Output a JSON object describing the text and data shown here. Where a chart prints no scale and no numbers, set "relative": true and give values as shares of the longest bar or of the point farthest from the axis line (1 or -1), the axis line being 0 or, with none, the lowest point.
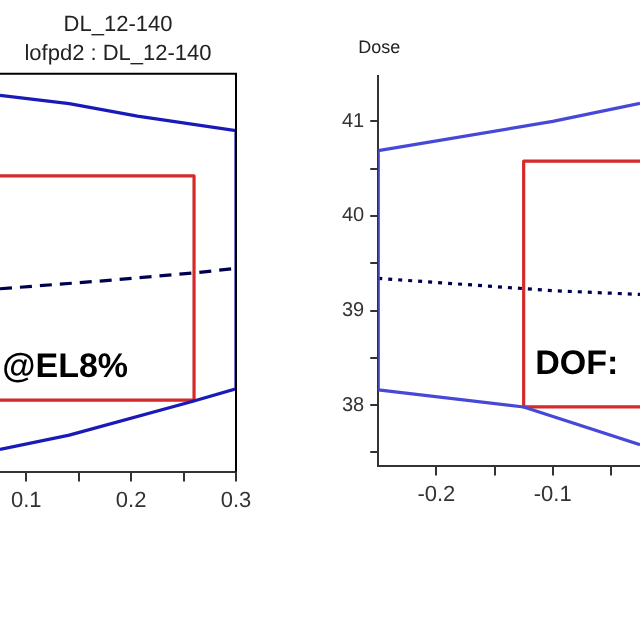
{
  "chart_data": [
    {
      "type": "line",
      "title": "DL_12-140",
      "subtitle": "lofpd2 : DL_12-140",
      "relative": true,
      "xlim": [
        0.075,
        0.3
      ],
      "xticks": [
        0.1,
        {
          "value": 0.15,
          "label": null
        },
        0.2,
        {
          "value": 0.25,
          "label": null
        },
        0.3
      ],
      "tick_labels": "x",
      "marker": "none",
      "grid": false,
      "annotations": [
        "@EL8%"
      ],
      "series": [
        {
          "color": "#1a1ab8",
          "x": [
            0.075,
            0.141,
            0.206,
            0.3,
            0.3,
            0.259,
            0.141,
            0.075
          ],
          "values": [
            1,
            0.978,
            0.945,
            0.906,
            0.22,
            0.187,
            0.097,
            0.059
          ]
        },
        {
          "color": "#000050",
          "line_style": "dashed",
          "x": [
            0.075,
            0.173,
            0.259,
            0.3
          ],
          "values": [
            0.486,
            0.507,
            0.528,
            0.54
          ]
        },
        {
          "color": "#d42a2a",
          "x": [
            0.075,
            0.26,
            0.26,
            0.075
          ],
          "values": [
            0.786,
            0.786,
            0.19,
            0.19
          ]
        }
      ]
    },
    {
      "type": "line",
      "ylabel": "Dose",
      "xlim": [
        -0.25,
        -0.025
      ],
      "ylim": [
        37.36,
        41.48
      ],
      "xticks": [
        -0.2,
        {
          "value": -0.15,
          "label": null
        },
        -0.1,
        {
          "value": -0.05,
          "label": null
        }
      ],
      "yticks": [
        {
          "value": 37.5,
          "label": null
        },
        38,
        {
          "value": 38.5,
          "label": null
        },
        39,
        {
          "value": 39.5,
          "label": null
        },
        40,
        {
          "value": 40.5,
          "label": null
        },
        41
      ],
      "marker": "none",
      "grid": false,
      "annotations": [
        "DOF:"
      ],
      "series": [
        {
          "color": "#4848d8",
          "x": [
            -0.025,
            -0.1,
            -0.25,
            -0.25,
            -0.125,
            -0.025
          ],
          "values": [
            41.19,
            41.0,
            40.69,
            38.16,
            37.98,
            37.58
          ]
        },
        {
          "color": "#000050",
          "line_style": "dotted",
          "x": [
            -0.25,
            -0.1,
            -0.025
          ],
          "values": [
            39.34,
            39.21,
            39.17
          ]
        },
        {
          "color": "#d42a2a",
          "x": [
            -0.025,
            -0.125,
            -0.125,
            -0.025
          ],
          "values": [
            40.58,
            40.58,
            37.98,
            37.98
          ]
        }
      ]
    }
  ]
}
